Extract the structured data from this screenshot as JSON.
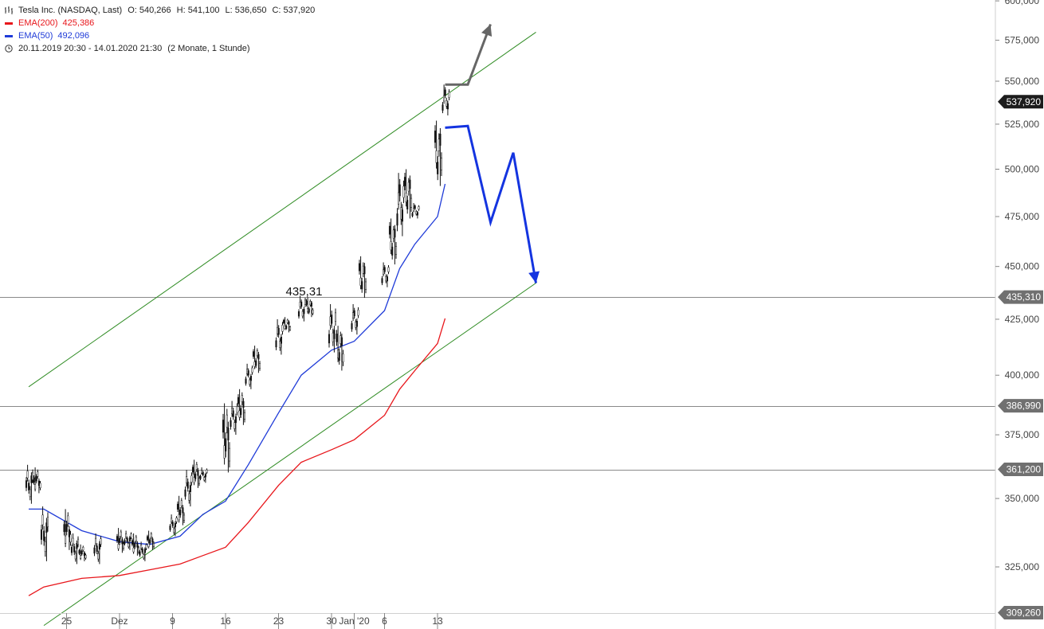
{
  "legend": {
    "title": "Tesla Inc. (NASDAQ, Last)",
    "ohlc": {
      "o": "O: 540,266",
      "h": "H: 541,100",
      "l": "L: 536,650",
      "c": "C: 537,920"
    },
    "ema200_label": "EMA(200)",
    "ema200_value": "425,386",
    "ema50_label": "EMA(50)",
    "ema50_value": "492,096",
    "range": "20.11.2019 20:30 - 14.01.2020 21:30",
    "range_note": "(2 Monate, 1 Stunde)",
    "colors": {
      "ema200": "#e8161b",
      "ema50": "#1f3bd8"
    }
  },
  "chart_data": {
    "type": "candlestick",
    "scale": "log",
    "ylim": [
      309.26,
      600
    ],
    "y_ticks": [
      "325,000",
      "350,000",
      "375,000",
      "400,000",
      "425,000",
      "450,000",
      "475,000",
      "500,000",
      "525,000",
      "550,000",
      "575,000",
      "600,000"
    ],
    "y_tick_values": [
      325,
      350,
      375,
      400,
      425,
      450,
      475,
      500,
      525,
      550,
      575,
      600
    ],
    "x_ticks": [
      "25",
      "Dez",
      "9",
      "16",
      "23",
      "30",
      "Jan '20",
      "6",
      "13"
    ],
    "x_tick_dates": [
      "2019-11-25",
      "2019-12-02",
      "2019-12-09",
      "2019-12-16",
      "2019-12-23",
      "2019-12-30",
      "2020-01-02",
      "2020-01-06",
      "2020-01-13"
    ],
    "price_tags": [
      {
        "label": "537,920",
        "value": 537.92,
        "style": "dark"
      },
      {
        "label": "435,310",
        "value": 435.31,
        "style": "gray"
      },
      {
        "label": "386,990",
        "value": 386.99,
        "style": "gray"
      },
      {
        "label": "361,200",
        "value": 361.2,
        "style": "gray"
      },
      {
        "label": "309,260",
        "value": 309.26,
        "style": "gray"
      }
    ],
    "horizontal_lines": [
      435.31,
      386.99,
      361.2
    ],
    "annotation": {
      "text": "435,31",
      "date": "2019-12-27",
      "value": 435.31
    },
    "candles_daily": [
      {
        "date": "2019-11-20",
        "low": 348,
        "high": 363
      },
      {
        "date": "2019-11-21",
        "low": 352,
        "high": 362
      },
      {
        "date": "2019-11-22",
        "low": 327,
        "high": 347
      },
      {
        "date": "2019-11-25",
        "low": 331,
        "high": 346
      },
      {
        "date": "2019-11-26",
        "low": 326,
        "high": 337
      },
      {
        "date": "2019-11-27",
        "low": 327,
        "high": 333
      },
      {
        "date": "2019-11-29",
        "low": 326,
        "high": 337
      },
      {
        "date": "2019-12-02",
        "low": 330,
        "high": 339
      },
      {
        "date": "2019-12-03",
        "low": 331,
        "high": 338
      },
      {
        "date": "2019-12-04",
        "low": 329,
        "high": 337
      },
      {
        "date": "2019-12-05",
        "low": 327,
        "high": 334
      },
      {
        "date": "2019-12-06",
        "low": 331,
        "high": 338
      },
      {
        "date": "2019-12-09",
        "low": 336,
        "high": 344
      },
      {
        "date": "2019-12-10",
        "low": 340,
        "high": 351
      },
      {
        "date": "2019-12-11",
        "low": 347,
        "high": 361
      },
      {
        "date": "2019-12-12",
        "low": 354,
        "high": 365
      },
      {
        "date": "2019-12-13",
        "low": 356,
        "high": 362
      },
      {
        "date": "2019-12-16",
        "low": 360,
        "high": 388
      },
      {
        "date": "2019-12-17",
        "low": 375,
        "high": 389
      },
      {
        "date": "2019-12-18",
        "low": 379,
        "high": 394
      },
      {
        "date": "2019-12-19",
        "low": 394,
        "high": 405
      },
      {
        "date": "2019-12-20",
        "low": 401,
        "high": 413
      },
      {
        "date": "2019-12-23",
        "low": 409,
        "high": 425
      },
      {
        "date": "2019-12-24",
        "low": 419,
        "high": 426
      },
      {
        "date": "2019-12-26",
        "low": 424,
        "high": 436
      },
      {
        "date": "2019-12-27",
        "low": 426,
        "high": 435.31
      },
      {
        "date": "2019-12-30",
        "low": 410,
        "high": 432
      },
      {
        "date": "2019-12-31",
        "low": 402,
        "high": 422
      },
      {
        "date": "2020-01-02",
        "low": 418,
        "high": 432
      },
      {
        "date": "2020-01-03",
        "low": 435,
        "high": 455
      },
      {
        "date": "2020-01-06",
        "low": 440,
        "high": 452
      },
      {
        "date": "2020-01-07",
        "low": 451,
        "high": 474
      },
      {
        "date": "2020-01-08",
        "low": 465,
        "high": 498
      },
      {
        "date": "2020-01-09",
        "low": 474,
        "high": 500
      },
      {
        "date": "2020-01-10",
        "low": 474,
        "high": 482
      },
      {
        "date": "2020-01-13",
        "low": 491,
        "high": 527
      },
      {
        "date": "2020-01-14",
        "low": 530,
        "high": 548
      }
    ],
    "ema50": [
      {
        "date": "2019-11-20",
        "value": 346
      },
      {
        "date": "2019-11-22",
        "value": 346
      },
      {
        "date": "2019-11-27",
        "value": 338
      },
      {
        "date": "2019-12-02",
        "value": 334
      },
      {
        "date": "2019-12-06",
        "value": 333
      },
      {
        "date": "2019-12-10",
        "value": 336
      },
      {
        "date": "2019-12-13",
        "value": 344
      },
      {
        "date": "2019-12-16",
        "value": 349
      },
      {
        "date": "2019-12-19",
        "value": 363
      },
      {
        "date": "2019-12-23",
        "value": 384
      },
      {
        "date": "2019-12-26",
        "value": 400
      },
      {
        "date": "2019-12-30",
        "value": 411
      },
      {
        "date": "2020-01-02",
        "value": 415
      },
      {
        "date": "2020-01-06",
        "value": 429
      },
      {
        "date": "2020-01-08",
        "value": 449
      },
      {
        "date": "2020-01-10",
        "value": 461
      },
      {
        "date": "2020-01-13",
        "value": 475
      },
      {
        "date": "2020-01-14",
        "value": 492.096
      }
    ],
    "ema200": [
      {
        "date": "2019-11-20",
        "value": 315
      },
      {
        "date": "2019-11-22",
        "value": 318
      },
      {
        "date": "2019-11-27",
        "value": 321
      },
      {
        "date": "2019-12-02",
        "value": 322
      },
      {
        "date": "2019-12-06",
        "value": 324
      },
      {
        "date": "2019-12-10",
        "value": 326
      },
      {
        "date": "2019-12-13",
        "value": 329
      },
      {
        "date": "2019-12-16",
        "value": 332
      },
      {
        "date": "2019-12-19",
        "value": 341
      },
      {
        "date": "2019-12-23",
        "value": 355
      },
      {
        "date": "2019-12-26",
        "value": 364
      },
      {
        "date": "2019-12-30",
        "value": 369
      },
      {
        "date": "2020-01-02",
        "value": 373
      },
      {
        "date": "2020-01-06",
        "value": 383
      },
      {
        "date": "2020-01-08",
        "value": 394
      },
      {
        "date": "2020-01-10",
        "value": 402
      },
      {
        "date": "2020-01-13",
        "value": 414
      },
      {
        "date": "2020-01-14",
        "value": 425.386
      }
    ],
    "trend_channel": {
      "upper": [
        {
          "date": "2019-11-20",
          "value": 395
        },
        {
          "date": "2020-01-26",
          "value": 580
        }
      ],
      "lower": [
        {
          "date": "2019-11-22",
          "value": 305
        },
        {
          "date": "2020-01-26",
          "value": 442
        }
      ]
    },
    "scenario_up": [
      {
        "date": "2020-01-14",
        "value": 548
      },
      {
        "date": "2020-01-17",
        "value": 548
      },
      {
        "date": "2020-01-20",
        "value": 585
      }
    ],
    "scenario_down": [
      {
        "date": "2020-01-14",
        "value": 523
      },
      {
        "date": "2020-01-17",
        "value": 524
      },
      {
        "date": "2020-01-20",
        "value": 472
      },
      {
        "date": "2020-01-23",
        "value": 509
      },
      {
        "date": "2020-01-26",
        "value": 442
      }
    ],
    "colors": {
      "ema50": "#1f3bd8",
      "ema200": "#e8161b",
      "trend": "#2e8b22",
      "scenario_up": "#666666",
      "scenario_down": "#1434e0",
      "candle": "#111111",
      "hline": "#8a8a8a",
      "tag_dark": "#1c1c1c",
      "tag_gray": "#707070"
    }
  }
}
